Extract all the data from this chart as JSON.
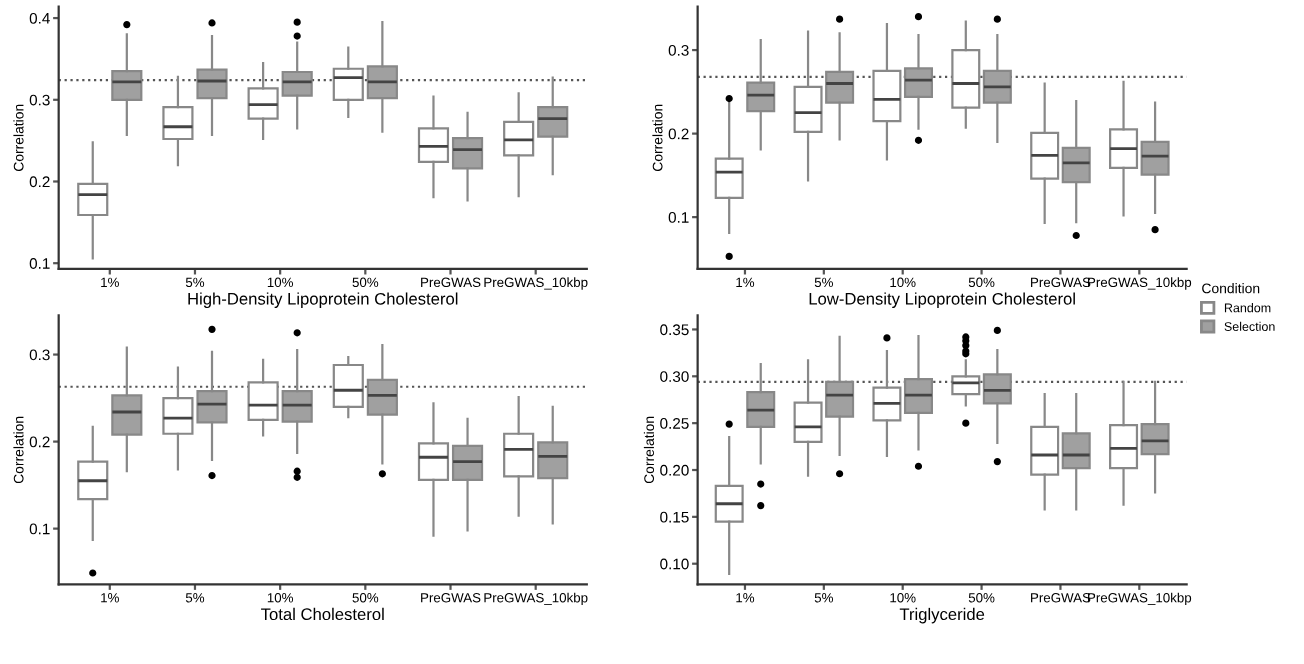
{
  "chart_data": [
    {
      "type": "box",
      "xlabel": "High-Density Lipoprotein Cholesterol",
      "ylabel": "Correlation",
      "categories": [
        "1%",
        "5%",
        "10%",
        "50%",
        "PreGWAS",
        "PreGWAS_10kbp"
      ],
      "ylim": [
        0.093,
        0.414
      ],
      "yticks": [
        0.1,
        0.2,
        0.3,
        0.4
      ],
      "grid": false,
      "ref_lines": [
        {
          "axis": "y",
          "value": 0.324,
          "line_style": "dotted",
          "color": "#555555"
        }
      ],
      "series": [
        {
          "color": "#ffffff",
          "boxes": [
            {
              "low": 0.106,
              "q1": 0.159,
              "median": 0.184,
              "q3": 0.197,
              "high": 0.248
            },
            {
              "low": 0.22,
              "q1": 0.252,
              "median": 0.267,
              "q3": 0.291,
              "high": 0.328
            },
            {
              "low": 0.252,
              "q1": 0.277,
              "median": 0.294,
              "q3": 0.314,
              "high": 0.345
            },
            {
              "low": 0.279,
              "q1": 0.3,
              "median": 0.327,
              "q3": 0.338,
              "high": 0.364
            },
            {
              "low": 0.181,
              "q1": 0.224,
              "median": 0.243,
              "q3": 0.265,
              "high": 0.304
            },
            {
              "low": 0.182,
              "q1": 0.232,
              "median": 0.251,
              "q3": 0.273,
              "high": 0.308
            }
          ]
        },
        {
          "color": "#a0a0a0",
          "boxes": [
            {
              "low": 0.257,
              "q1": 0.3,
              "median": 0.322,
              "q3": 0.335,
              "high": 0.38,
              "outliers": [
                0.392
              ]
            },
            {
              "low": 0.257,
              "q1": 0.302,
              "median": 0.323,
              "q3": 0.337,
              "high": 0.378,
              "outliers": [
                0.394
              ]
            },
            {
              "low": 0.265,
              "q1": 0.305,
              "median": 0.322,
              "q3": 0.334,
              "high": 0.37,
              "outliers": [
                0.395,
                0.378
              ]
            },
            {
              "low": 0.261,
              "q1": 0.302,
              "median": 0.322,
              "q3": 0.341,
              "high": 0.395
            },
            {
              "low": 0.177,
              "q1": 0.216,
              "median": 0.239,
              "q3": 0.253,
              "high": 0.284
            },
            {
              "low": 0.209,
              "q1": 0.255,
              "median": 0.277,
              "q3": 0.291,
              "high": 0.327
            }
          ]
        }
      ]
    },
    {
      "type": "box",
      "xlabel": "Low-Density Lipoprotein Cholesterol",
      "ylabel": "Correlation",
      "categories": [
        "1%",
        "5%",
        "10%",
        "50%",
        "PreGWAS",
        "PreGWAS_10kbp"
      ],
      "ylim": [
        0.038,
        0.352
      ],
      "yticks": [
        0.1,
        0.2,
        0.3
      ],
      "grid": false,
      "legend": "right",
      "legend_title": "Condition",
      "ref_lines": [
        {
          "axis": "y",
          "value": 0.268,
          "line_style": "dotted",
          "color": "#555555"
        }
      ],
      "series": [
        {
          "name": "Random",
          "color": "#ffffff",
          "boxes": [
            {
              "low": 0.081,
              "q1": 0.123,
              "median": 0.154,
              "q3": 0.17,
              "high": 0.237,
              "outliers": [
                0.242,
                0.053
              ]
            },
            {
              "low": 0.144,
              "q1": 0.202,
              "median": 0.225,
              "q3": 0.256,
              "high": 0.322
            },
            {
              "low": 0.169,
              "q1": 0.215,
              "median": 0.241,
              "q3": 0.275,
              "high": 0.331
            },
            {
              "low": 0.207,
              "q1": 0.231,
              "median": 0.26,
              "q3": 0.3,
              "high": 0.334
            },
            {
              "low": 0.093,
              "q1": 0.146,
              "median": 0.174,
              "q3": 0.201,
              "high": 0.26
            },
            {
              "low": 0.102,
              "q1": 0.159,
              "median": 0.182,
              "q3": 0.205,
              "high": 0.262
            }
          ]
        },
        {
          "name": "Selection",
          "color": "#a0a0a0",
          "boxes": [
            {
              "low": 0.181,
              "q1": 0.227,
              "median": 0.246,
              "q3": 0.261,
              "high": 0.312
            },
            {
              "low": 0.193,
              "q1": 0.237,
              "median": 0.26,
              "q3": 0.274,
              "high": 0.32,
              "outliers": [
                0.337
              ]
            },
            {
              "low": 0.206,
              "q1": 0.244,
              "median": 0.264,
              "q3": 0.278,
              "high": 0.318,
              "outliers": [
                0.34,
                0.192
              ]
            },
            {
              "low": 0.19,
              "q1": 0.237,
              "median": 0.256,
              "q3": 0.275,
              "high": 0.318,
              "outliers": [
                0.337
              ]
            },
            {
              "low": 0.094,
              "q1": 0.142,
              "median": 0.165,
              "q3": 0.183,
              "high": 0.239,
              "outliers": [
                0.078
              ]
            },
            {
              "low": 0.105,
              "q1": 0.151,
              "median": 0.173,
              "q3": 0.19,
              "high": 0.237,
              "outliers": [
                0.085
              ]
            }
          ]
        }
      ]
    },
    {
      "type": "box",
      "xlabel": "Total Cholesterol",
      "ylabel": "Correlation",
      "categories": [
        "1%",
        "5%",
        "10%",
        "50%",
        "PreGWAS",
        "PreGWAS_10kbp"
      ],
      "ylim": [
        0.036,
        0.345
      ],
      "yticks": [
        0.1,
        0.2,
        0.3
      ],
      "grid": false,
      "ref_lines": [
        {
          "axis": "y",
          "value": 0.263,
          "line_style": "dotted",
          "color": "#555555"
        }
      ],
      "series": [
        {
          "color": "#ffffff",
          "boxes": [
            {
              "low": 0.087,
              "q1": 0.134,
              "median": 0.155,
              "q3": 0.177,
              "high": 0.217,
              "outliers": [
                0.049
              ]
            },
            {
              "low": 0.168,
              "q1": 0.209,
              "median": 0.227,
              "q3": 0.25,
              "high": 0.285
            },
            {
              "low": 0.207,
              "q1": 0.225,
              "median": 0.242,
              "q3": 0.268,
              "high": 0.294
            },
            {
              "low": 0.228,
              "q1": 0.24,
              "median": 0.259,
              "q3": 0.288,
              "high": 0.297
            },
            {
              "low": 0.092,
              "q1": 0.156,
              "median": 0.182,
              "q3": 0.198,
              "high": 0.244
            },
            {
              "low": 0.115,
              "q1": 0.16,
              "median": 0.191,
              "q3": 0.209,
              "high": 0.251
            }
          ]
        },
        {
          "color": "#a0a0a0",
          "boxes": [
            {
              "low": 0.166,
              "q1": 0.208,
              "median": 0.234,
              "q3": 0.253,
              "high": 0.308
            },
            {
              "low": 0.179,
              "q1": 0.222,
              "median": 0.243,
              "q3": 0.258,
              "high": 0.303,
              "outliers": [
                0.329,
                0.161
              ]
            },
            {
              "low": 0.187,
              "q1": 0.223,
              "median": 0.242,
              "q3": 0.258,
              "high": 0.305,
              "outliers": [
                0.325,
                0.166,
                0.159
              ]
            },
            {
              "low": 0.175,
              "q1": 0.231,
              "median": 0.253,
              "q3": 0.271,
              "high": 0.311,
              "outliers": [
                0.163
              ]
            },
            {
              "low": 0.098,
              "q1": 0.156,
              "median": 0.177,
              "q3": 0.195,
              "high": 0.226
            },
            {
              "low": 0.106,
              "q1": 0.158,
              "median": 0.183,
              "q3": 0.199,
              "high": 0.24
            }
          ]
        }
      ]
    },
    {
      "type": "box",
      "xlabel": "Triglyceride",
      "ylabel": "Correlation",
      "categories": [
        "1%",
        "5%",
        "10%",
        "50%",
        "PreGWAS",
        "PreGWAS_10kbp"
      ],
      "ylim": [
        0.078,
        0.365
      ],
      "yticks": [
        {
          "value": 0.1,
          "label": "0.10"
        },
        {
          "value": 0.15,
          "label": "0.15"
        },
        {
          "value": 0.2,
          "label": "0.20"
        },
        {
          "value": 0.25,
          "label": "0.25"
        },
        {
          "value": 0.3,
          "label": "0.30"
        },
        {
          "value": 0.35,
          "label": "0.35"
        }
      ],
      "grid": false,
      "ref_lines": [
        {
          "axis": "y",
          "value": 0.294,
          "line_style": "dotted",
          "color": "#555555"
        }
      ],
      "series": [
        {
          "color": "#ffffff",
          "boxes": [
            {
              "low": 0.089,
              "q1": 0.145,
              "median": 0.164,
              "q3": 0.183,
              "high": 0.235,
              "outliers": [
                0.249
              ]
            },
            {
              "low": 0.194,
              "q1": 0.23,
              "median": 0.246,
              "q3": 0.272,
              "high": 0.317
            },
            {
              "low": 0.215,
              "q1": 0.253,
              "median": 0.271,
              "q3": 0.288,
              "high": 0.327,
              "outliers": [
                0.341
              ]
            },
            {
              "low": 0.269,
              "q1": 0.281,
              "median": 0.293,
              "q3": 0.3,
              "high": 0.317,
              "outliers": [
                0.342,
                0.338,
                0.333,
                0.327,
                0.324,
                0.25
              ]
            },
            {
              "low": 0.158,
              "q1": 0.195,
              "median": 0.216,
              "q3": 0.246,
              "high": 0.281
            },
            {
              "low": 0.163,
              "q1": 0.202,
              "median": 0.223,
              "q3": 0.248,
              "high": 0.294
            }
          ]
        },
        {
          "color": "#a0a0a0",
          "boxes": [
            {
              "low": 0.207,
              "q1": 0.246,
              "median": 0.264,
              "q3": 0.283,
              "high": 0.313,
              "outliers": [
                0.185,
                0.162
              ]
            },
            {
              "low": 0.216,
              "q1": 0.257,
              "median": 0.28,
              "q3": 0.294,
              "high": 0.342,
              "outliers": [
                0.196
              ]
            },
            {
              "low": 0.222,
              "q1": 0.261,
              "median": 0.28,
              "q3": 0.297,
              "high": 0.343,
              "outliers": [
                0.204
              ]
            },
            {
              "low": 0.229,
              "q1": 0.271,
              "median": 0.285,
              "q3": 0.302,
              "high": 0.328,
              "outliers": [
                0.349,
                0.209
              ]
            },
            {
              "low": 0.158,
              "q1": 0.202,
              "median": 0.216,
              "q3": 0.239,
              "high": 0.281
            },
            {
              "low": 0.176,
              "q1": 0.217,
              "median": 0.231,
              "q3": 0.249,
              "high": 0.294
            }
          ]
        }
      ]
    }
  ]
}
